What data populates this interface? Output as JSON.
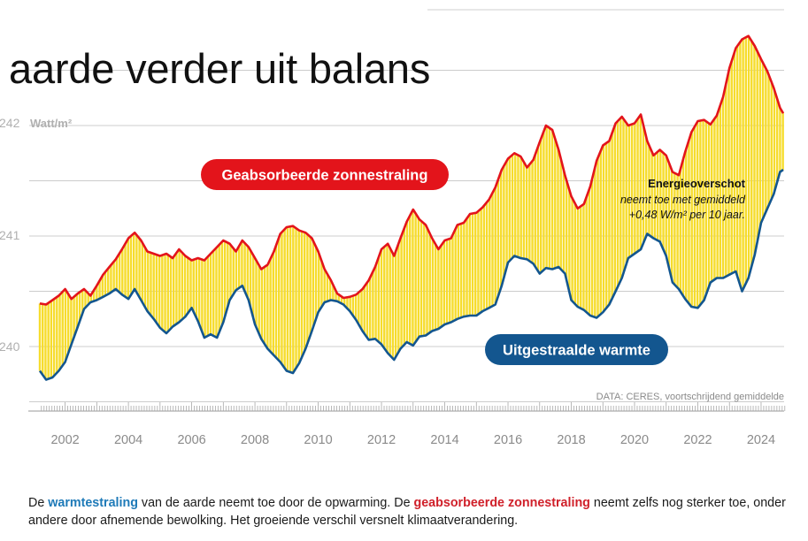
{
  "headline": "aarde verder uit balans",
  "caption": {
    "part1": "De ",
    "term1": "warmtestraling",
    "part2": " van de aarde neemt toe door de opwarming. De ",
    "term2": "geabsorbeerde zonnestraling",
    "part3": " neemt zelfs nog sterker toe, onder andere door afnemende bewolking. Het groeiende verschil versnelt klimaatverandering."
  },
  "colors": {
    "absorbed": "#e3141b",
    "emitted": "#13568f",
    "fill": "#f6dc2c",
    "grid": "#cccccc",
    "axis_text": "#8a8a8a"
  },
  "chart_data": {
    "type": "line",
    "unit_label": "Watt/m²",
    "ylim": [
      239.5,
      242.9
    ],
    "xlim": [
      2001.2,
      2024.7
    ],
    "y_ticks": [
      240,
      241,
      242
    ],
    "y_tick_labels": [
      "240",
      "241",
      "242"
    ],
    "x_ticks": [
      2002,
      2004,
      2006,
      2008,
      2010,
      2012,
      2014,
      2016,
      2018,
      2020,
      2022,
      2024
    ],
    "x_tick_labels": [
      "2002",
      "2004",
      "2006",
      "2008",
      "2010",
      "2012",
      "2014",
      "2016",
      "2018",
      "2020",
      "2022",
      "2024"
    ],
    "source": "DATA: CERES, voortschrijdend gemiddelde",
    "series": [
      {
        "name": "Geabsorbeerde zonnestraling",
        "points": [
          [
            2001.2,
            240.39
          ],
          [
            2001.4,
            240.38
          ],
          [
            2001.6,
            240.42
          ],
          [
            2001.8,
            240.46
          ],
          [
            2002.0,
            240.52
          ],
          [
            2002.2,
            240.43
          ],
          [
            2002.4,
            240.48
          ],
          [
            2002.6,
            240.52
          ],
          [
            2002.8,
            240.46
          ],
          [
            2003.0,
            240.55
          ],
          [
            2003.2,
            240.65
          ],
          [
            2003.4,
            240.72
          ],
          [
            2003.6,
            240.79
          ],
          [
            2003.8,
            240.88
          ],
          [
            2004.0,
            240.98
          ],
          [
            2004.2,
            241.03
          ],
          [
            2004.4,
            240.96
          ],
          [
            2004.6,
            240.86
          ],
          [
            2004.8,
            240.84
          ],
          [
            2005.0,
            240.82
          ],
          [
            2005.2,
            240.84
          ],
          [
            2005.4,
            240.8
          ],
          [
            2005.6,
            240.88
          ],
          [
            2005.8,
            240.82
          ],
          [
            2006.0,
            240.78
          ],
          [
            2006.2,
            240.8
          ],
          [
            2006.4,
            240.78
          ],
          [
            2006.6,
            240.84
          ],
          [
            2006.8,
            240.9
          ],
          [
            2007.0,
            240.96
          ],
          [
            2007.2,
            240.93
          ],
          [
            2007.4,
            240.86
          ],
          [
            2007.6,
            240.96
          ],
          [
            2007.8,
            240.9
          ],
          [
            2008.0,
            240.8
          ],
          [
            2008.2,
            240.7
          ],
          [
            2008.4,
            240.74
          ],
          [
            2008.6,
            240.86
          ],
          [
            2008.8,
            241.02
          ],
          [
            2009.0,
            241.08
          ],
          [
            2009.2,
            241.09
          ],
          [
            2009.4,
            241.05
          ],
          [
            2009.6,
            241.03
          ],
          [
            2009.8,
            240.98
          ],
          [
            2010.0,
            240.86
          ],
          [
            2010.2,
            240.7
          ],
          [
            2010.4,
            240.6
          ],
          [
            2010.6,
            240.48
          ],
          [
            2010.8,
            240.44
          ],
          [
            2011.0,
            240.45
          ],
          [
            2011.2,
            240.47
          ],
          [
            2011.4,
            240.52
          ],
          [
            2011.6,
            240.6
          ],
          [
            2011.8,
            240.72
          ],
          [
            2012.0,
            240.88
          ],
          [
            2012.2,
            240.93
          ],
          [
            2012.4,
            240.82
          ],
          [
            2012.6,
            240.98
          ],
          [
            2012.8,
            241.13
          ],
          [
            2013.0,
            241.24
          ],
          [
            2013.2,
            241.15
          ],
          [
            2013.4,
            241.1
          ],
          [
            2013.6,
            240.98
          ],
          [
            2013.8,
            240.88
          ],
          [
            2014.0,
            240.96
          ],
          [
            2014.2,
            240.98
          ],
          [
            2014.4,
            241.1
          ],
          [
            2014.6,
            241.12
          ],
          [
            2014.8,
            241.2
          ],
          [
            2015.0,
            241.21
          ],
          [
            2015.2,
            241.26
          ],
          [
            2015.4,
            241.33
          ],
          [
            2015.6,
            241.44
          ],
          [
            2015.8,
            241.6
          ],
          [
            2016.0,
            241.7
          ],
          [
            2016.2,
            241.75
          ],
          [
            2016.4,
            241.72
          ],
          [
            2016.6,
            241.62
          ],
          [
            2016.8,
            241.69
          ],
          [
            2017.0,
            241.85
          ],
          [
            2017.2,
            242.0
          ],
          [
            2017.4,
            241.96
          ],
          [
            2017.6,
            241.78
          ],
          [
            2017.8,
            241.55
          ],
          [
            2018.0,
            241.36
          ],
          [
            2018.2,
            241.25
          ],
          [
            2018.4,
            241.29
          ],
          [
            2018.6,
            241.45
          ],
          [
            2018.8,
            241.68
          ],
          [
            2019.0,
            241.82
          ],
          [
            2019.2,
            241.86
          ],
          [
            2019.4,
            242.02
          ],
          [
            2019.6,
            242.08
          ],
          [
            2019.8,
            242.0
          ],
          [
            2020.0,
            242.02
          ],
          [
            2020.2,
            242.1
          ],
          [
            2020.4,
            241.86
          ],
          [
            2020.6,
            241.73
          ],
          [
            2020.8,
            241.78
          ],
          [
            2021.0,
            241.73
          ],
          [
            2021.2,
            241.58
          ],
          [
            2021.4,
            241.55
          ],
          [
            2021.6,
            241.76
          ],
          [
            2021.8,
            241.94
          ],
          [
            2022.0,
            242.04
          ],
          [
            2022.2,
            242.05
          ],
          [
            2022.4,
            242.01
          ],
          [
            2022.6,
            242.09
          ],
          [
            2022.8,
            242.26
          ],
          [
            2023.0,
            242.52
          ],
          [
            2023.2,
            242.7
          ],
          [
            2023.4,
            242.78
          ],
          [
            2023.6,
            242.81
          ],
          [
            2023.8,
            242.72
          ],
          [
            2024.0,
            242.6
          ],
          [
            2024.2,
            242.49
          ],
          [
            2024.4,
            242.34
          ],
          [
            2024.6,
            242.16
          ],
          [
            2024.7,
            242.11
          ]
        ]
      },
      {
        "name": "Uitgestraalde warmte",
        "points": [
          [
            2001.2,
            239.78
          ],
          [
            2001.4,
            239.7
          ],
          [
            2001.6,
            239.72
          ],
          [
            2001.8,
            239.78
          ],
          [
            2002.0,
            239.86
          ],
          [
            2002.2,
            240.02
          ],
          [
            2002.4,
            240.18
          ],
          [
            2002.6,
            240.34
          ],
          [
            2002.8,
            240.4
          ],
          [
            2003.0,
            240.42
          ],
          [
            2003.2,
            240.45
          ],
          [
            2003.4,
            240.48
          ],
          [
            2003.6,
            240.52
          ],
          [
            2003.8,
            240.47
          ],
          [
            2004.0,
            240.43
          ],
          [
            2004.2,
            240.52
          ],
          [
            2004.4,
            240.42
          ],
          [
            2004.6,
            240.32
          ],
          [
            2004.8,
            240.25
          ],
          [
            2005.0,
            240.17
          ],
          [
            2005.2,
            240.12
          ],
          [
            2005.4,
            240.18
          ],
          [
            2005.6,
            240.22
          ],
          [
            2005.8,
            240.27
          ],
          [
            2006.0,
            240.35
          ],
          [
            2006.2,
            240.23
          ],
          [
            2006.4,
            240.08
          ],
          [
            2006.6,
            240.11
          ],
          [
            2006.8,
            240.08
          ],
          [
            2007.0,
            240.22
          ],
          [
            2007.2,
            240.42
          ],
          [
            2007.4,
            240.51
          ],
          [
            2007.6,
            240.55
          ],
          [
            2007.8,
            240.42
          ],
          [
            2008.0,
            240.2
          ],
          [
            2008.2,
            240.07
          ],
          [
            2008.4,
            239.98
          ],
          [
            2008.6,
            239.92
          ],
          [
            2008.8,
            239.86
          ],
          [
            2009.0,
            239.78
          ],
          [
            2009.2,
            239.76
          ],
          [
            2009.4,
            239.85
          ],
          [
            2009.6,
            239.98
          ],
          [
            2009.8,
            240.14
          ],
          [
            2010.0,
            240.31
          ],
          [
            2010.2,
            240.4
          ],
          [
            2010.4,
            240.42
          ],
          [
            2010.6,
            240.41
          ],
          [
            2010.8,
            240.38
          ],
          [
            2011.0,
            240.32
          ],
          [
            2011.2,
            240.24
          ],
          [
            2011.4,
            240.14
          ],
          [
            2011.6,
            240.06
          ],
          [
            2011.8,
            240.07
          ],
          [
            2012.0,
            240.02
          ],
          [
            2012.2,
            239.94
          ],
          [
            2012.4,
            239.88
          ],
          [
            2012.6,
            239.98
          ],
          [
            2012.8,
            240.04
          ],
          [
            2013.0,
            240.01
          ],
          [
            2013.2,
            240.09
          ],
          [
            2013.4,
            240.1
          ],
          [
            2013.6,
            240.14
          ],
          [
            2013.8,
            240.16
          ],
          [
            2014.0,
            240.2
          ],
          [
            2014.2,
            240.22
          ],
          [
            2014.4,
            240.25
          ],
          [
            2014.6,
            240.27
          ],
          [
            2014.8,
            240.28
          ],
          [
            2015.0,
            240.28
          ],
          [
            2015.2,
            240.32
          ],
          [
            2015.4,
            240.35
          ],
          [
            2015.6,
            240.38
          ],
          [
            2015.8,
            240.55
          ],
          [
            2016.0,
            240.76
          ],
          [
            2016.2,
            240.82
          ],
          [
            2016.4,
            240.8
          ],
          [
            2016.6,
            240.79
          ],
          [
            2016.8,
            240.75
          ],
          [
            2017.0,
            240.66
          ],
          [
            2017.2,
            240.71
          ],
          [
            2017.4,
            240.7
          ],
          [
            2017.6,
            240.72
          ],
          [
            2017.8,
            240.66
          ],
          [
            2018.0,
            240.42
          ],
          [
            2018.2,
            240.36
          ],
          [
            2018.4,
            240.33
          ],
          [
            2018.6,
            240.28
          ],
          [
            2018.8,
            240.26
          ],
          [
            2019.0,
            240.31
          ],
          [
            2019.2,
            240.38
          ],
          [
            2019.4,
            240.5
          ],
          [
            2019.6,
            240.62
          ],
          [
            2019.8,
            240.8
          ],
          [
            2020.0,
            240.84
          ],
          [
            2020.2,
            240.88
          ],
          [
            2020.4,
            241.02
          ],
          [
            2020.6,
            240.98
          ],
          [
            2020.8,
            240.95
          ],
          [
            2021.0,
            240.82
          ],
          [
            2021.2,
            240.58
          ],
          [
            2021.4,
            240.52
          ],
          [
            2021.6,
            240.43
          ],
          [
            2021.8,
            240.36
          ],
          [
            2022.0,
            240.35
          ],
          [
            2022.2,
            240.42
          ],
          [
            2022.4,
            240.58
          ],
          [
            2022.6,
            240.62
          ],
          [
            2022.8,
            240.62
          ],
          [
            2023.0,
            240.65
          ],
          [
            2023.2,
            240.68
          ],
          [
            2023.4,
            240.5
          ],
          [
            2023.6,
            240.62
          ],
          [
            2023.8,
            240.83
          ],
          [
            2024.0,
            241.12
          ],
          [
            2024.2,
            241.25
          ],
          [
            2024.4,
            241.38
          ],
          [
            2024.6,
            241.58
          ],
          [
            2024.7,
            241.6
          ]
        ]
      }
    ],
    "annotations": {
      "absorbed_label": "Geabsorbeerde zonnestraling",
      "emitted_label": "Uitgestraalde warmte",
      "energy_title": "Energieoverschot",
      "energy_line1": "neemt toe met gemiddeld",
      "energy_line2": "+0,48 W/m² per 10 jaar."
    }
  }
}
